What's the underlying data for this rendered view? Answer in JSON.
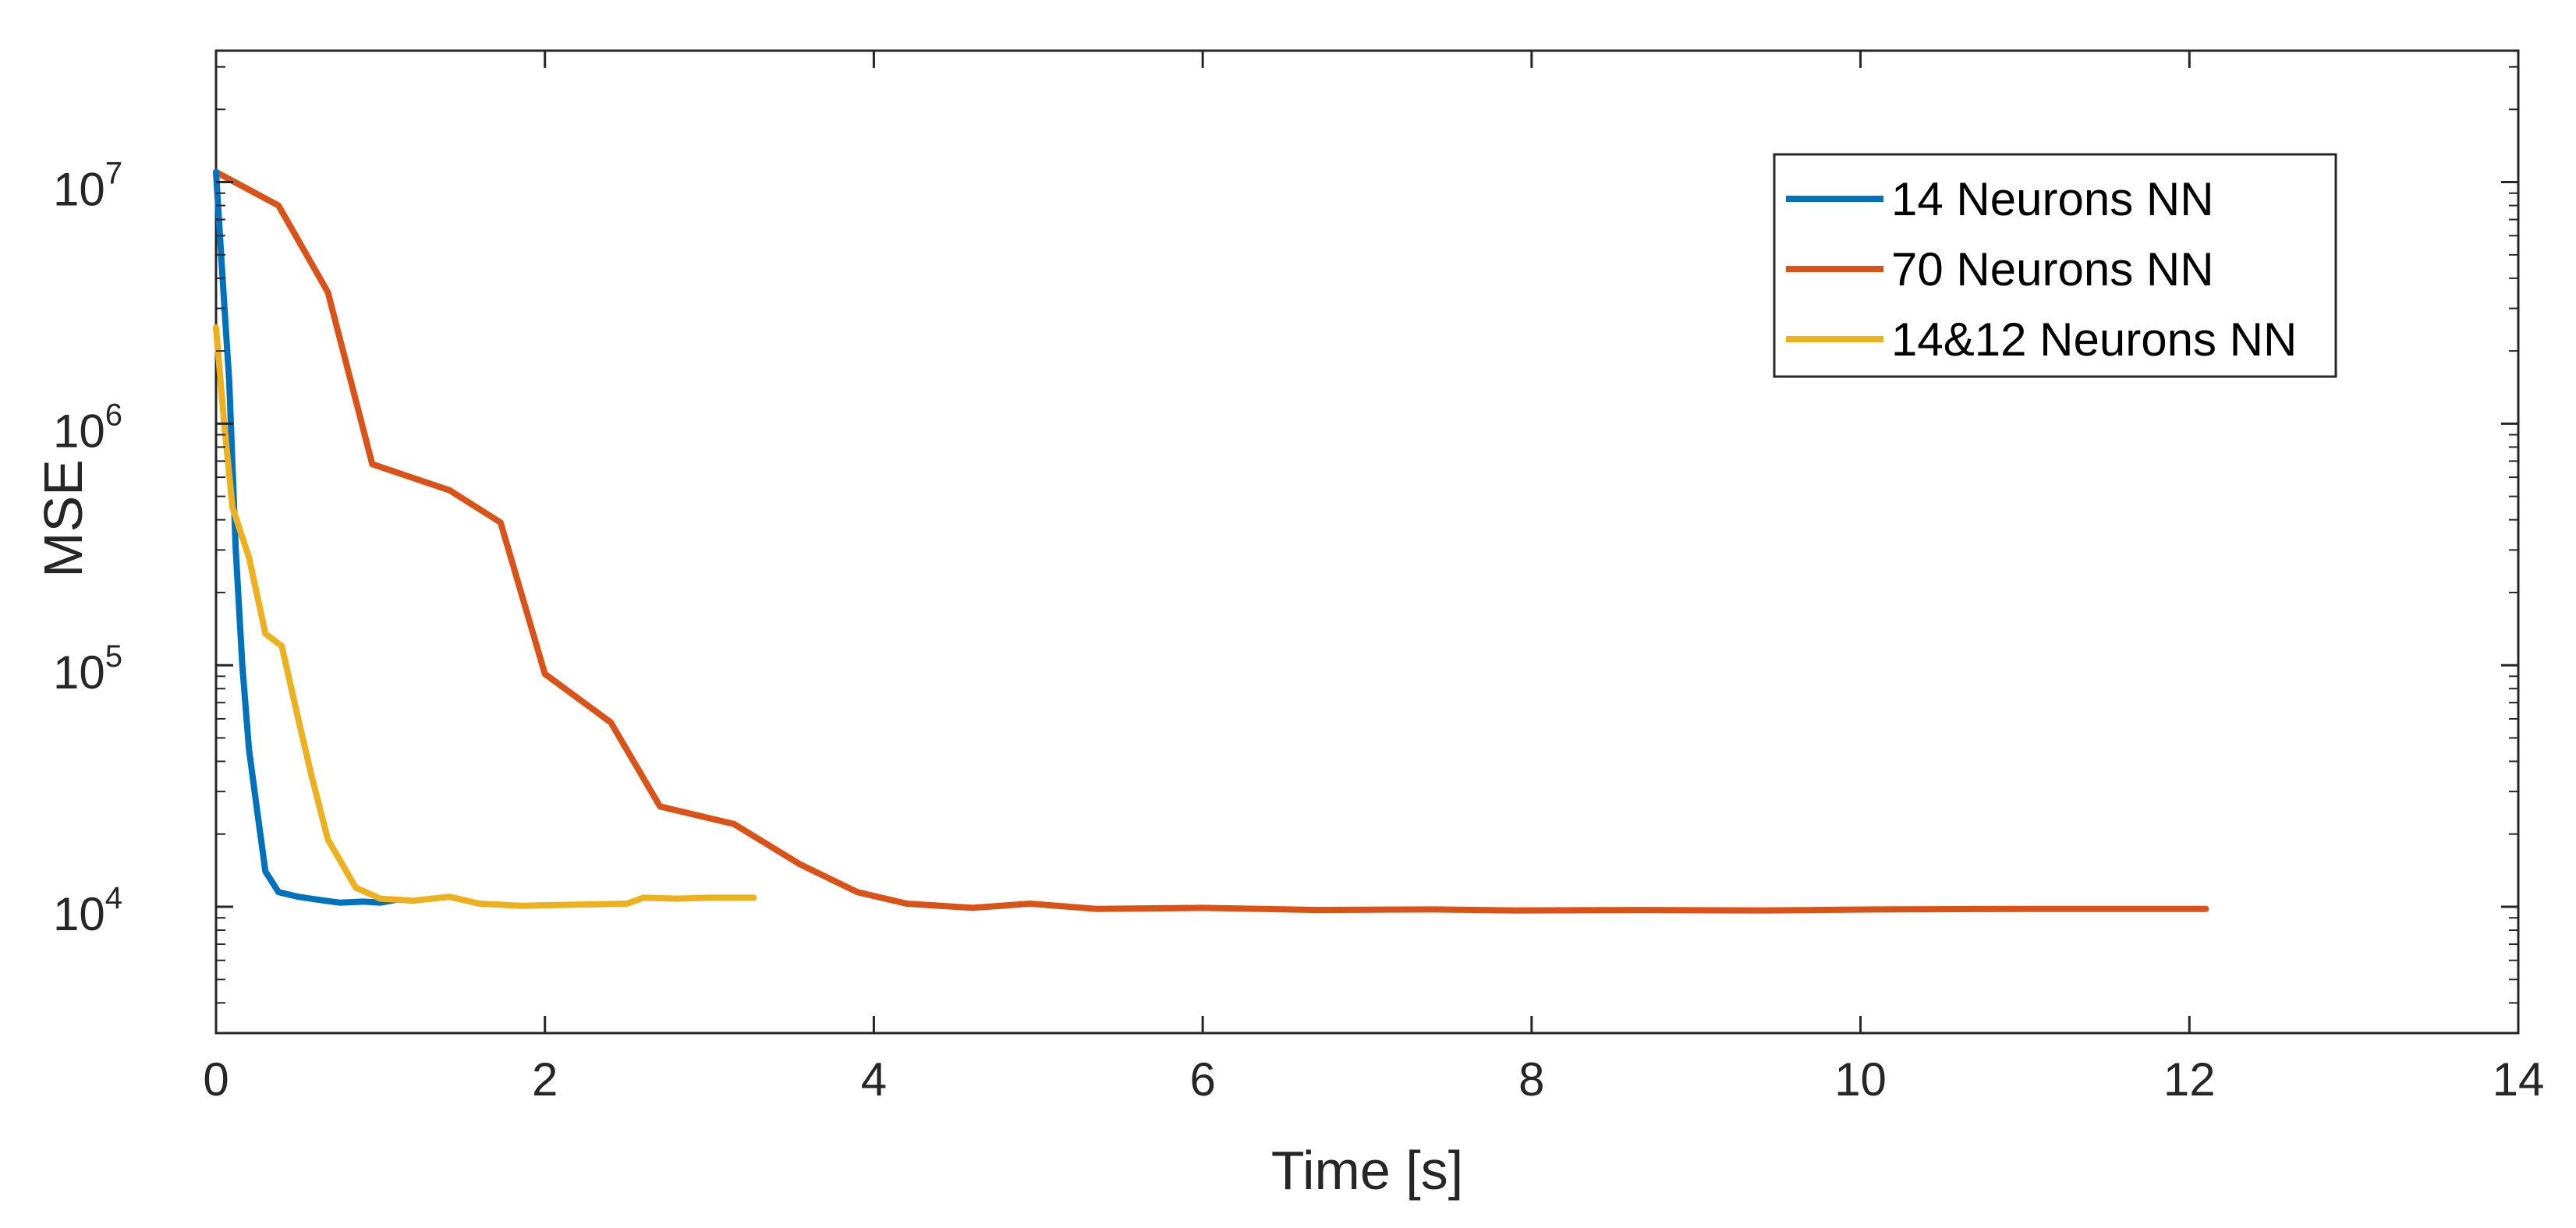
{
  "chart_data": {
    "type": "line",
    "xlabel": "Time [s]",
    "ylabel": "MSE",
    "xlim": [
      0,
      14
    ],
    "ylim": [
      3000,
      35000000
    ],
    "y_scale": "log",
    "x_ticks": [
      0,
      2,
      4,
      6,
      8,
      10,
      12,
      14
    ],
    "x_tick_labels": [
      "0",
      "2",
      "4",
      "6",
      "8",
      "10",
      "12",
      "14"
    ],
    "y_ticks": [
      {
        "value": 10000,
        "base": "10",
        "exp": "4"
      },
      {
        "value": 100000,
        "base": "10",
        "exp": "5"
      },
      {
        "value": 1000000,
        "base": "10",
        "exp": "6"
      },
      {
        "value": 10000000,
        "base": "10",
        "exp": "7"
      }
    ],
    "legend_position": "top-right",
    "grid": false,
    "series": [
      {
        "name": "14 Neurons NN",
        "color": "#0072BD",
        "points": [
          [
            0,
            11000000
          ],
          [
            0.04,
            4000000
          ],
          [
            0.08,
            1500000
          ],
          [
            0.12,
            300000
          ],
          [
            0.16,
            100000
          ],
          [
            0.2,
            45000
          ],
          [
            0.25,
            25000
          ],
          [
            0.3,
            14000
          ],
          [
            0.38,
            11500
          ],
          [
            0.5,
            11000
          ],
          [
            0.62,
            10700
          ],
          [
            0.75,
            10400
          ],
          [
            0.9,
            10500
          ],
          [
            1.0,
            10400
          ],
          [
            1.1,
            10700
          ]
        ]
      },
      {
        "name": "70 Neurons NN",
        "color": "#D95319",
        "points": [
          [
            0,
            11000000
          ],
          [
            0.38,
            8000000
          ],
          [
            0.68,
            3500000
          ],
          [
            0.95,
            680000
          ],
          [
            1.42,
            530000
          ],
          [
            1.73,
            390000
          ],
          [
            2.0,
            92000
          ],
          [
            2.4,
            58000
          ],
          [
            2.7,
            26000
          ],
          [
            3.15,
            22000
          ],
          [
            3.55,
            15000
          ],
          [
            3.9,
            11500
          ],
          [
            4.2,
            10300
          ],
          [
            4.6,
            9900
          ],
          [
            4.95,
            10300
          ],
          [
            5.35,
            9800
          ],
          [
            6.0,
            9900
          ],
          [
            6.7,
            9700
          ],
          [
            7.4,
            9750
          ],
          [
            7.9,
            9650
          ],
          [
            8.7,
            9700
          ],
          [
            9.4,
            9650
          ],
          [
            10.1,
            9750
          ],
          [
            11.0,
            9800
          ],
          [
            12.1,
            9800
          ]
        ]
      },
      {
        "name": "14&12 Neurons NN",
        "color": "#EDB120",
        "points": [
          [
            0,
            2500000
          ],
          [
            0.05,
            1000000
          ],
          [
            0.1,
            450000
          ],
          [
            0.2,
            280000
          ],
          [
            0.3,
            135000
          ],
          [
            0.4,
            120000
          ],
          [
            0.5,
            60000
          ],
          [
            0.58,
            35000
          ],
          [
            0.68,
            19000
          ],
          [
            0.85,
            12000
          ],
          [
            1.0,
            10800
          ],
          [
            1.2,
            10600
          ],
          [
            1.42,
            11000
          ],
          [
            1.6,
            10300
          ],
          [
            1.85,
            10100
          ],
          [
            2.2,
            10200
          ],
          [
            2.5,
            10300
          ],
          [
            2.6,
            10900
          ],
          [
            2.8,
            10800
          ],
          [
            3.0,
            10900
          ],
          [
            3.27,
            10900
          ]
        ]
      }
    ]
  }
}
